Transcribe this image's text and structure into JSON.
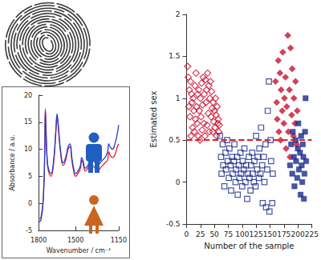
{
  "chart_data": [
    {
      "type": "line",
      "xlabel": "Wavenumber / cm⁻¹",
      "ylabel": "Absorbance / a.u.",
      "xlim": [
        1800,
        1150
      ],
      "ylim": [
        -5,
        20
      ],
      "xticks": [
        1800,
        1500,
        1150
      ],
      "yticks": [
        -5,
        0,
        5,
        10,
        15,
        20
      ],
      "grid": false,
      "x": [
        1800,
        1780,
        1760,
        1750,
        1745,
        1740,
        1730,
        1720,
        1700,
        1680,
        1660,
        1650,
        1640,
        1620,
        1600,
        1580,
        1560,
        1545,
        1530,
        1515,
        1500,
        1480,
        1460,
        1450,
        1440,
        1420,
        1400,
        1380,
        1360,
        1340,
        1320,
        1300,
        1280,
        1260,
        1240,
        1230,
        1220,
        1200,
        1180,
        1160,
        1150
      ],
      "series": [
        {
          "color": "#e8202a",
          "values": [
            -3,
            -2.5,
            2,
            10,
            17.5,
            14,
            8,
            6,
            5,
            7,
            13,
            16,
            14,
            9,
            7,
            8,
            10,
            10.5,
            8,
            6,
            5,
            5.5,
            6.5,
            8,
            7.5,
            6,
            6.5,
            7.5,
            7,
            6.5,
            6,
            6.5,
            7,
            7.5,
            8,
            9.5,
            9,
            8.5,
            9,
            10.5,
            11
          ]
        },
        {
          "color": "#1f3fd0",
          "values": [
            -3.5,
            -3,
            1.5,
            9.5,
            17,
            13.5,
            8,
            6.5,
            5.5,
            7.5,
            13.5,
            16.5,
            14.5,
            9.5,
            7.5,
            8.5,
            10.5,
            11,
            8.5,
            6.5,
            5.5,
            6,
            7,
            8.5,
            8,
            6.5,
            7,
            8,
            8,
            7.5,
            7,
            7.5,
            8,
            8.5,
            9.5,
            11,
            10.5,
            10,
            11,
            13,
            14.5
          ]
        }
      ]
    },
    {
      "type": "scatter",
      "xlabel": "Number of the sample",
      "ylabel": "Estimated sex",
      "xlim": [
        0,
        225
      ],
      "ylim": [
        -0.5,
        2
      ],
      "xticks": [
        0,
        25,
        50,
        75,
        100,
        125,
        150,
        175,
        200,
        225
      ],
      "yticks": [
        -0.5,
        0,
        0.5,
        1,
        1.5,
        2
      ],
      "grid": false,
      "reference_line": {
        "value": 0.5,
        "color": "#e02020",
        "line_style": "dashed"
      },
      "series": [
        {
          "color": "#c8102e",
          "marker": "diamond_open",
          "x": [
            2,
            3,
            4,
            5,
            6,
            7,
            8,
            9,
            10,
            11,
            12,
            13,
            14,
            15,
            16,
            17,
            18,
            19,
            20,
            21,
            22,
            23,
            24,
            25,
            26,
            27,
            28,
            29,
            30,
            31,
            32,
            33,
            34,
            35,
            36,
            37,
            38,
            39,
            40,
            41,
            42,
            43,
            44,
            45,
            46,
            47,
            48,
            49,
            50,
            51,
            52,
            53,
            54,
            55,
            56,
            57,
            58,
            59
          ],
          "values": [
            1.38,
            1.25,
            0.9,
            1.1,
            0.78,
            1.2,
            0.55,
            1.05,
            0.95,
            0.65,
            1.0,
            0.85,
            0.6,
            1.15,
            0.75,
            1.3,
            0.9,
            0.7,
            1.05,
            0.55,
            1.1,
            0.85,
            0.5,
            1.0,
            0.78,
            1.18,
            0.62,
            0.92,
            1.25,
            0.7,
            1.05,
            0.55,
            1.22,
            0.95,
            1.1,
            0.68,
            1.3,
            0.82,
            1.15,
            0.6,
            1.0,
            1.2,
            0.78,
            1.08,
            0.88,
            0.6,
            0.95,
            0.72,
            0.85,
            0.65,
            1.0,
            0.8,
            0.55,
            0.9,
            0.7,
            0.75,
            0.6,
            0.68
          ]
        },
        {
          "color": "#1a2a8c",
          "marker": "square_open",
          "x": [
            60,
            62,
            63,
            65,
            66,
            68,
            70,
            71,
            73,
            74,
            76,
            77,
            79,
            80,
            82,
            83,
            85,
            86,
            88,
            89,
            91,
            92,
            94,
            95,
            97,
            98,
            100,
            101,
            103,
            104,
            106,
            107,
            109,
            110,
            112,
            113,
            115,
            116,
            118,
            119,
            121,
            122,
            124,
            125,
            127,
            128,
            130,
            131,
            133,
            134,
            136,
            137,
            139,
            140,
            142,
            143,
            145,
            146,
            148,
            149,
            151,
            152,
            154,
            155
          ],
          "values": [
            0.55,
            0.3,
            0.1,
            0.45,
            0.2,
            -0.05,
            0.35,
            0.15,
            0.5,
            0.25,
            0.05,
            0.4,
            0.2,
            -0.1,
            0.3,
            0.1,
            0.25,
            0.45,
            0.0,
            0.15,
            0.3,
            -0.15,
            0.2,
            0.05,
            0.35,
            0.1,
            -0.05,
            0.25,
            0.15,
            0.4,
            0.0,
            0.2,
            -0.2,
            0.1,
            0.3,
            0.05,
            -0.1,
            0.2,
            0.35,
            0.1,
            0.0,
            0.25,
            -0.05,
            0.55,
            0.15,
            0.3,
            0.05,
            0.4,
            0.1,
            0.65,
            0.2,
            -0.25,
            0.3,
            0.0,
            0.45,
            -0.3,
            0.15,
            0.85,
            1.2,
            -0.35,
            0.5,
            0.25,
            -0.25,
            0.1
          ]
        },
        {
          "color": "#c8102e",
          "marker": "diamond",
          "x": [
            160,
            162,
            163,
            165,
            166,
            168,
            169,
            170,
            172,
            173,
            175,
            176,
            178,
            179,
            180,
            182,
            183,
            185,
            186,
            187,
            189,
            190,
            192,
            193,
            195,
            196,
            198,
            199
          ],
          "values": [
            1.2,
            0.95,
            0.75,
            1.45,
            0.6,
            1.3,
            0.5,
            1.1,
            0.85,
            1.55,
            0.7,
            1.0,
            1.25,
            0.4,
            0.9,
            1.75,
            0.6,
            1.1,
            0.3,
            1.6,
            0.8,
            1.35,
            0.55,
            1.0,
            0.7,
            1.2,
            0.45,
            0.85
          ]
        },
        {
          "color": "#1a2a8c",
          "marker": "square",
          "x": [
            186,
            188,
            190,
            191,
            193,
            194,
            196,
            197,
            199,
            200,
            201,
            202,
            204,
            205,
            206,
            207,
            208,
            209,
            210,
            211,
            212,
            213,
            214,
            215
          ],
          "values": [
            0.2,
            0.45,
            0.1,
            0.6,
            0.3,
            -0.05,
            0.5,
            0.25,
            0.05,
            0.4,
            0.7,
            0.15,
            0.35,
            -0.15,
            0.55,
            0.2,
            0.0,
            0.45,
            0.3,
            -0.2,
            0.1,
            0.6,
            1.0,
            0.25
          ]
        }
      ]
    }
  ]
}
